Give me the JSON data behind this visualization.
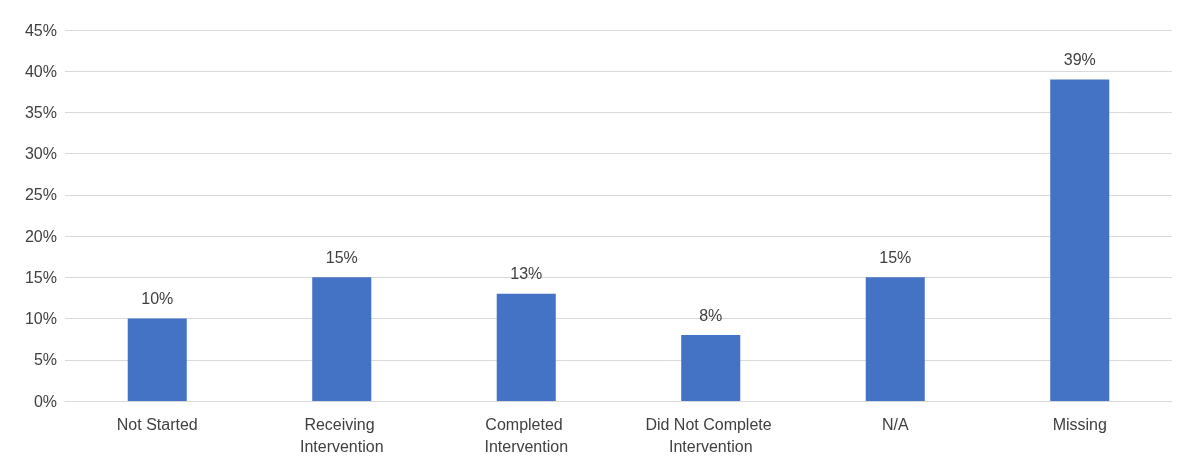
{
  "chart_data": {
    "type": "bar",
    "categories": [
      "Not Started",
      "Receiving Intervention",
      "Completed Intervention",
      "Did Not Complete Intervention",
      "N/A",
      "Missing"
    ],
    "values": [
      10,
      15,
      13,
      8,
      15,
      39
    ],
    "value_labels": [
      "10%",
      "15%",
      "13%",
      "8%",
      "15%",
      "39%"
    ],
    "color": "#4472c4",
    "ylim": [
      0,
      45
    ],
    "yticks": [
      {
        "value": 0,
        "label": "0%"
      },
      {
        "value": 5,
        "label": "5%"
      },
      {
        "value": 10,
        "label": "10%"
      },
      {
        "value": 15,
        "label": "15%"
      },
      {
        "value": 20,
        "label": "20%"
      },
      {
        "value": 25,
        "label": "25%"
      },
      {
        "value": 30,
        "label": "30%"
      },
      {
        "value": 35,
        "label": "35%"
      },
      {
        "value": 40,
        "label": "40%"
      },
      {
        "value": 45,
        "label": "45%"
      }
    ],
    "grid": "y"
  }
}
